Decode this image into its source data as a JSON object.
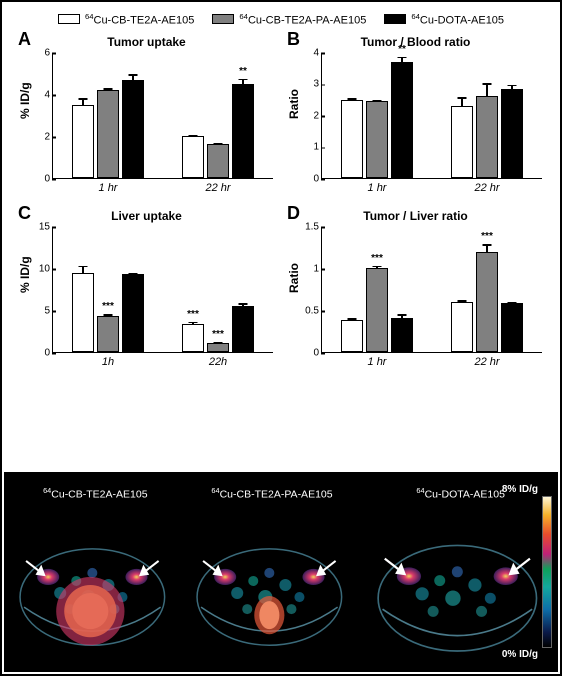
{
  "figure": {
    "legend": [
      {
        "label_html": "<sup>64</sup>Cu-CB-TE2A-AE105",
        "color": "#ffffff"
      },
      {
        "label_html": "<sup>64</sup>Cu-CB-TE2A-PA-AE105",
        "color": "#808080"
      },
      {
        "label_html": "<sup>64</sup>Cu-DOTA-AE105",
        "color": "#000000"
      }
    ],
    "series_colors": [
      "#ffffff",
      "#808080",
      "#000000"
    ],
    "panels": {
      "A": {
        "letter": "A",
        "title": "Tumor uptake",
        "ylabel": "% ID/g",
        "ylim": [
          0,
          6
        ],
        "ytick_step": 2,
        "groups": [
          {
            "label": "1 hr",
            "values": [
              3.5,
              4.2,
              4.7
            ],
            "errors": [
              0.35,
              0.15,
              0.3
            ],
            "sig": [
              null,
              null,
              null
            ]
          },
          {
            "label": "22 hr",
            "values": [
              2.0,
              1.6,
              4.5
            ],
            "errors": [
              0.1,
              0.12,
              0.3
            ],
            "sig": [
              null,
              null,
              "**"
            ]
          }
        ]
      },
      "B": {
        "letter": "B",
        "title": "Tumor / Blood ratio",
        "ylabel": "Ratio",
        "ylim": [
          0,
          4
        ],
        "ytick_step": 1,
        "groups": [
          {
            "label": "1 hr",
            "values": [
              2.5,
              2.45,
              3.7
            ],
            "errors": [
              0.08,
              0.08,
              0.2
            ],
            "sig": [
              null,
              null,
              "**"
            ]
          },
          {
            "label": "22 hr",
            "values": [
              2.3,
              2.6,
              2.85
            ],
            "errors": [
              0.3,
              0.45,
              0.15
            ],
            "sig": [
              null,
              null,
              null
            ]
          }
        ]
      },
      "C": {
        "letter": "C",
        "title": "Liver uptake",
        "ylabel": "% ID/g",
        "ylim": [
          0,
          15
        ],
        "ytick_step": 5,
        "groups": [
          {
            "label": "1h",
            "values": [
              9.5,
              4.3,
              9.3
            ],
            "errors": [
              0.9,
              0.3,
              0.3
            ],
            "sig": [
              null,
              "***",
              null
            ]
          },
          {
            "label": "22h",
            "values": [
              3.3,
              1.1,
              5.5
            ],
            "errors": [
              0.4,
              0.15,
              0.4
            ],
            "sig": [
              "***",
              "***",
              null
            ]
          }
        ]
      },
      "D": {
        "letter": "D",
        "title": "Tumor / Liver ratio",
        "ylabel": "Ratio",
        "ylim": [
          0,
          1.5
        ],
        "ytick_step": 0.5,
        "groups": [
          {
            "label": "1 hr",
            "values": [
              0.38,
              1.0,
              0.4
            ],
            "errors": [
              0.03,
              0.04,
              0.06
            ],
            "sig": [
              null,
              "***",
              null
            ]
          },
          {
            "label": "22 hr",
            "values": [
              0.6,
              1.2,
              0.58
            ],
            "errors": [
              0.03,
              0.1,
              0.03
            ],
            "sig": [
              null,
              "***",
              null
            ]
          }
        ]
      }
    },
    "panel_order": [
      "A",
      "B",
      "C",
      "D"
    ],
    "chart_styling": {
      "bar_border_color": "#000000",
      "axis_color": "#000000",
      "xlabel_fontstyle": "italic",
      "title_fontweight": "bold"
    },
    "scan_strip": {
      "background": "#000000",
      "labels_html": [
        "<sup>64</sup>Cu-CB-TE2A-AE105",
        "<sup>64</sup>Cu-CB-TE2A-PA-AE105",
        "<sup>64</sup>Cu-DOTA-AE105"
      ],
      "colorbar": {
        "top_label": "8% ID/g",
        "bottom_label": "0% ID/g"
      },
      "hotspot_intensity": [
        "high",
        "medium",
        "low"
      ]
    }
  }
}
